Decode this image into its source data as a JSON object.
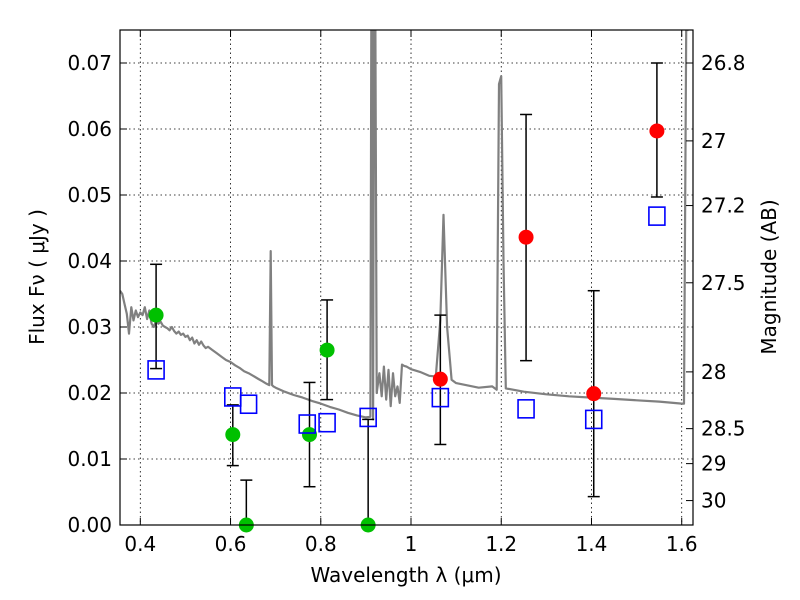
{
  "chart_data": {
    "type": "scatter",
    "xlabel": "Wavelength  λ (μm)",
    "ylabel": "Flux  Fν  ( μJy )",
    "y2label": "Magnitude (AB)",
    "xlim": [
      0.355,
      1.625
    ],
    "ylim": [
      0.0,
      0.075
    ],
    "grid": true,
    "x_ticks": [
      0.4,
      0.6,
      0.8,
      1.0,
      1.2,
      1.4,
      1.6
    ],
    "x_tick_labels": [
      "0.4",
      "0.6",
      "0.8",
      "1",
      "1.2",
      "1.4",
      "1.6"
    ],
    "y_ticks": [
      0.0,
      0.01,
      0.02,
      0.03,
      0.04,
      0.05,
      0.06,
      0.07
    ],
    "y_tick_labels": [
      "0.00",
      "0.01",
      "0.02",
      "0.03",
      "0.04",
      "0.05",
      "0.06",
      "0.07"
    ],
    "y2_ticks": [
      {
        "label": "26.8",
        "flux": 0.07
      },
      {
        "label": "27",
        "flux": 0.0582
      },
      {
        "label": "27.2",
        "flux": 0.0484
      },
      {
        "label": "27.5",
        "flux": 0.0367
      },
      {
        "label": "28",
        "flux": 0.0232
      },
      {
        "label": "28.5",
        "flux": 0.0146
      },
      {
        "label": "29",
        "flux": 0.0093
      },
      {
        "label": "30",
        "flux": 0.0037
      }
    ],
    "colors": {
      "green": "#00c000",
      "red": "#ff0000",
      "blue": "#0000ff",
      "model": "#808080",
      "errorbar": "#000000"
    },
    "series": [
      {
        "marker": "circle-green",
        "points": [
          {
            "x": 0.435,
            "y": 0.0318,
            "ylo": 0.0237,
            "yhi": 0.0395
          },
          {
            "x": 0.605,
            "y": 0.0137,
            "ylo": 0.009,
            "yhi": 0.0182
          },
          {
            "x": 0.635,
            "y": 0.0,
            "ylo": 0.0,
            "yhi": 0.0068
          },
          {
            "x": 0.775,
            "y": 0.0137,
            "ylo": 0.0058,
            "yhi": 0.0216
          },
          {
            "x": 0.814,
            "y": 0.0265,
            "ylo": 0.019,
            "yhi": 0.0341
          },
          {
            "x": 0.905,
            "y": 0.0,
            "ylo": 0.0,
            "yhi": 0.016
          }
        ]
      },
      {
        "marker": "circle-red",
        "points": [
          {
            "x": 1.065,
            "y": 0.0221,
            "ylo": 0.0122,
            "yhi": 0.0318
          },
          {
            "x": 1.255,
            "y": 0.0436,
            "ylo": 0.0249,
            "yhi": 0.0622
          },
          {
            "x": 1.405,
            "y": 0.0199,
            "ylo": 0.0043,
            "yhi": 0.0355
          },
          {
            "x": 1.545,
            "y": 0.0597,
            "ylo": 0.0497,
            "yhi": 0.07
          }
        ]
      },
      {
        "marker": "square-blue",
        "points": [
          {
            "x": 0.435,
            "y": 0.0235
          },
          {
            "x": 0.605,
            "y": 0.0194
          },
          {
            "x": 0.64,
            "y": 0.0183
          },
          {
            "x": 0.77,
            "y": 0.0153
          },
          {
            "x": 0.814,
            "y": 0.0155
          },
          {
            "x": 0.905,
            "y": 0.0163
          },
          {
            "x": 1.065,
            "y": 0.0193
          },
          {
            "x": 1.255,
            "y": 0.0176
          },
          {
            "x": 1.405,
            "y": 0.016
          },
          {
            "x": 1.545,
            "y": 0.0468
          }
        ]
      }
    ],
    "model_spectrum": {
      "x": [
        0.355,
        0.36,
        0.365,
        0.37,
        0.375,
        0.38,
        0.385,
        0.39,
        0.395,
        0.4,
        0.405,
        0.41,
        0.415,
        0.42,
        0.425,
        0.43,
        0.435,
        0.44,
        0.445,
        0.45,
        0.455,
        0.46,
        0.465,
        0.47,
        0.475,
        0.48,
        0.485,
        0.49,
        0.495,
        0.5,
        0.505,
        0.51,
        0.515,
        0.52,
        0.525,
        0.53,
        0.535,
        0.54,
        0.545,
        0.55,
        0.56,
        0.57,
        0.58,
        0.59,
        0.6,
        0.61,
        0.62,
        0.63,
        0.64,
        0.65,
        0.66,
        0.67,
        0.68,
        0.686,
        0.689,
        0.692,
        0.695,
        0.7,
        0.72,
        0.74,
        0.76,
        0.78,
        0.8,
        0.82,
        0.84,
        0.86,
        0.88,
        0.9,
        0.91,
        0.912,
        0.914,
        0.916,
        0.918,
        0.921,
        0.924,
        0.93,
        0.935,
        0.94,
        0.945,
        0.95,
        0.955,
        0.96,
        0.965,
        0.97,
        0.975,
        0.98,
        0.985,
        0.99,
        1.0,
        1.02,
        1.04,
        1.055,
        1.065,
        1.072,
        1.08,
        1.09,
        1.1,
        1.15,
        1.18,
        1.19,
        1.195,
        1.2,
        1.205,
        1.21,
        1.25,
        1.3,
        1.35,
        1.4,
        1.45,
        1.5,
        1.55,
        1.6,
        1.605,
        1.61,
        1.615
      ],
      "y": [
        0.0355,
        0.035,
        0.0335,
        0.032,
        0.029,
        0.033,
        0.031,
        0.0325,
        0.0315,
        0.0322,
        0.0318,
        0.033,
        0.0312,
        0.0325,
        0.0305,
        0.03,
        0.031,
        0.0305,
        0.0308,
        0.0302,
        0.03,
        0.0298,
        0.0295,
        0.03,
        0.0294,
        0.029,
        0.0293,
        0.0288,
        0.029,
        0.0285,
        0.0287,
        0.028,
        0.0284,
        0.0275,
        0.028,
        0.0273,
        0.0278,
        0.0272,
        0.0268,
        0.027,
        0.0265,
        0.026,
        0.0255,
        0.025,
        0.0247,
        0.0242,
        0.0238,
        0.0233,
        0.023,
        0.0226,
        0.0222,
        0.0218,
        0.0214,
        0.0212,
        0.0415,
        0.0212,
        0.021,
        0.0208,
        0.0202,
        0.0197,
        0.0193,
        0.0188,
        0.0184,
        0.0179,
        0.0175,
        0.017,
        0.0166,
        0.0163,
        0.0164,
        0.075,
        0.075,
        0.016,
        0.075,
        0.075,
        0.02,
        0.023,
        0.0195,
        0.024,
        0.019,
        0.0235,
        0.018,
        0.023,
        0.0195,
        0.021,
        0.0185,
        0.0243,
        0.0241,
        0.024,
        0.0236,
        0.0232,
        0.0226,
        0.0225,
        0.031,
        0.047,
        0.03,
        0.022,
        0.0215,
        0.0208,
        0.021,
        0.0205,
        0.0668,
        0.068,
        0.04,
        0.0207,
        0.0202,
        0.0198,
        0.0195,
        0.0193,
        0.0191,
        0.0189,
        0.0187,
        0.0184,
        0.0184,
        0.075,
        0.075
      ]
    }
  }
}
